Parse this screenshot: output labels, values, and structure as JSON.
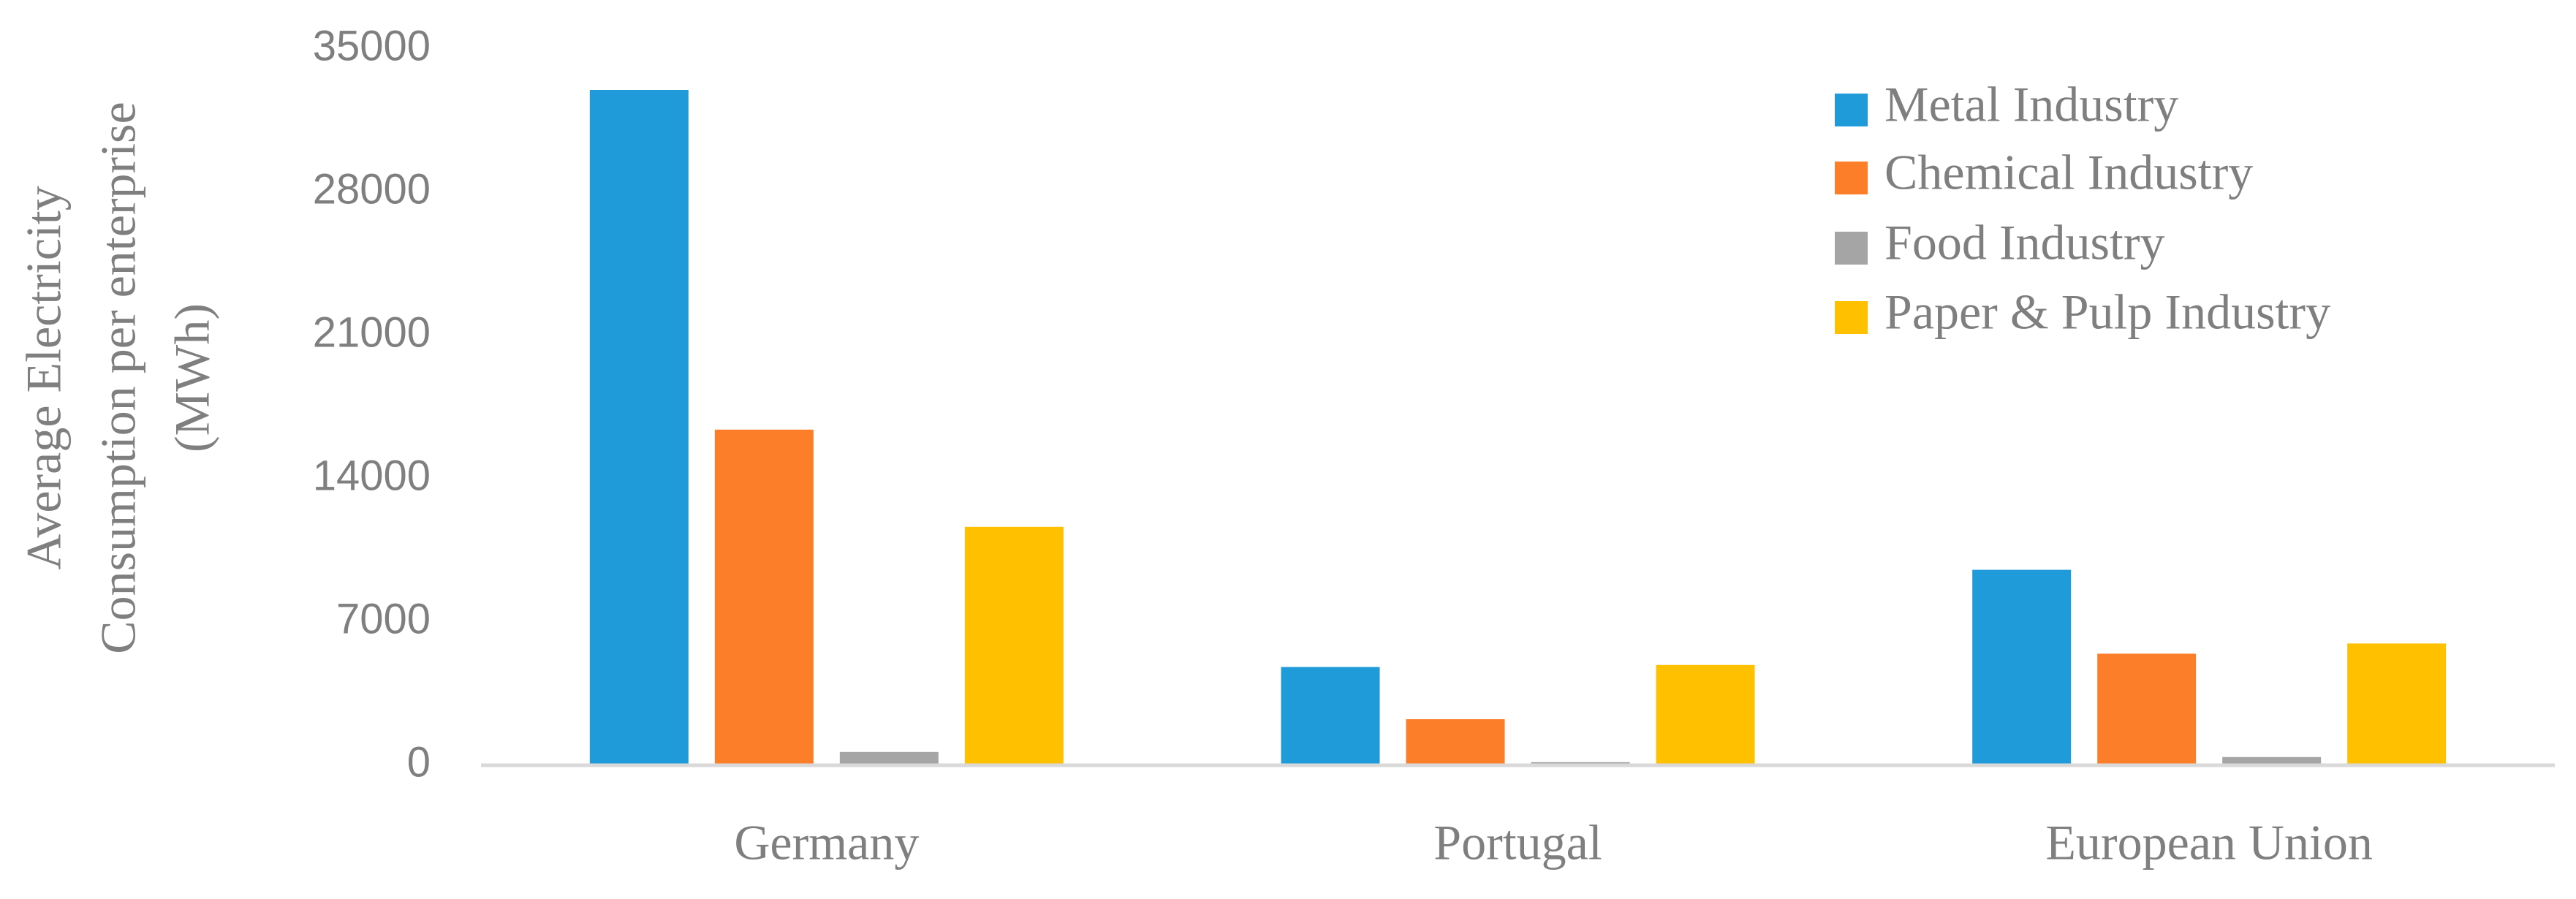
{
  "chart_data": {
    "type": "bar",
    "ylabel": [
      "Average Electricity",
      "Consumption per enterprise",
      "(MWh)"
    ],
    "categories": [
      "Germany",
      "Portugal",
      "European Union"
    ],
    "series": [
      {
        "name": "Metal Industry",
        "color": "#1f9bd9",
        "values": [
          33000,
          4800,
          9550
        ]
      },
      {
        "name": "Chemical Industry",
        "color": "#fc7e28",
        "values": [
          16400,
          2250,
          5450
        ]
      },
      {
        "name": "Food Industry",
        "color": "#a5a5a5",
        "values": [
          650,
          150,
          400
        ]
      },
      {
        "name": "Paper & Pulp Industry",
        "color": "#ffc000",
        "values": [
          11650,
          4900,
          5950
        ]
      }
    ],
    "ylim": [
      0,
      35000
    ],
    "yticks": [
      0,
      7000,
      14000,
      21000,
      28000,
      35000
    ],
    "grid": false,
    "legend": "top-right"
  }
}
